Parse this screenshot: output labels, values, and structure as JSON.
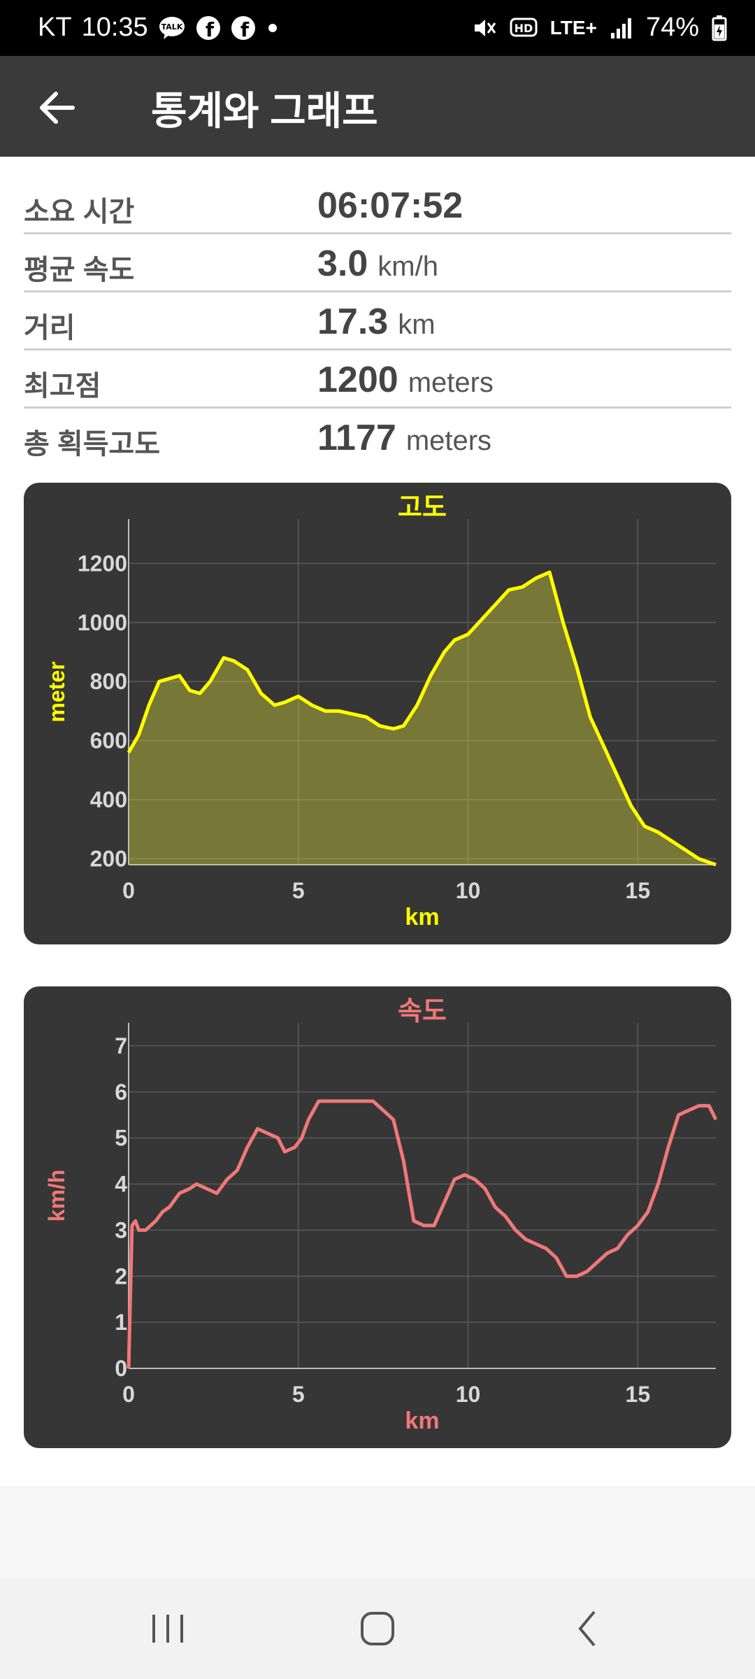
{
  "status_bar": {
    "carrier": "KT",
    "time": "10:35",
    "network": "LTE+",
    "battery": "74%"
  },
  "app_bar": {
    "title": "통계와 그래프"
  },
  "stats": [
    {
      "label": "소요 시간",
      "value": "06:07:52",
      "unit": ""
    },
    {
      "label": "평균 속도",
      "value": "3.0",
      "unit": "km/h"
    },
    {
      "label": "거리",
      "value": "17.3",
      "unit": "km"
    },
    {
      "label": "최고점",
      "value": "1200",
      "unit": "meters"
    },
    {
      "label": "총 획득고도",
      "value": "1177",
      "unit": "meters"
    }
  ],
  "colors": {
    "elevation": "#ffff00",
    "speed": "#f07878",
    "card_bg": "#363636",
    "app_bar": "#3a3a3a"
  },
  "chart_data": [
    {
      "type": "area",
      "title": "고도",
      "xlabel": "km",
      "ylabel": "meter",
      "xlim": [
        0,
        17.3
      ],
      "ylim": [
        180,
        1350
      ],
      "xticks": [
        0,
        5,
        10,
        15
      ],
      "yticks": [
        200,
        400,
        600,
        800,
        1000,
        1200
      ],
      "grid": true,
      "series": [
        {
          "x": [
            0,
            0.3,
            0.6,
            0.9,
            1.2,
            1.5,
            1.8,
            2.1,
            2.4,
            2.8,
            3.1,
            3.5,
            3.9,
            4.3,
            4.6,
            5.0,
            5.4,
            5.8,
            6.2,
            6.6,
            7.0,
            7.4,
            7.8,
            8.1,
            8.5,
            8.9,
            9.3,
            9.6,
            10.0,
            10.4,
            10.8,
            11.2,
            11.6,
            12.0,
            12.4,
            12.8,
            13.2,
            13.6,
            14.0,
            14.4,
            14.8,
            15.2,
            15.6,
            16.0,
            16.4,
            16.8,
            17.3
          ],
          "y": [
            560,
            620,
            720,
            800,
            810,
            820,
            770,
            760,
            800,
            880,
            870,
            840,
            760,
            720,
            730,
            750,
            720,
            700,
            700,
            690,
            680,
            650,
            640,
            650,
            720,
            820,
            900,
            940,
            960,
            1010,
            1060,
            1110,
            1120,
            1150,
            1170,
            1000,
            850,
            680,
            580,
            480,
            380,
            310,
            290,
            260,
            230,
            200,
            180
          ]
        }
      ]
    },
    {
      "type": "line",
      "title": "속도",
      "xlabel": "km",
      "ylabel": "km/h",
      "xlim": [
        0,
        17.3
      ],
      "ylim": [
        0,
        7.5
      ],
      "xticks": [
        0,
        5,
        10,
        15
      ],
      "yticks": [
        0,
        1,
        2,
        3,
        4,
        5,
        6,
        7
      ],
      "grid": true,
      "series": [
        {
          "x": [
            0,
            0.1,
            0.2,
            0.3,
            0.5,
            0.8,
            1.0,
            1.2,
            1.5,
            1.8,
            2.0,
            2.3,
            2.6,
            2.9,
            3.2,
            3.5,
            3.8,
            4.1,
            4.4,
            4.6,
            4.9,
            5.1,
            5.3,
            5.6,
            5.9,
            6.2,
            6.5,
            6.8,
            7.2,
            7.5,
            7.8,
            8.1,
            8.4,
            8.7,
            9.0,
            9.3,
            9.6,
            9.9,
            10.2,
            10.5,
            10.8,
            11.1,
            11.4,
            11.7,
            12.0,
            12.3,
            12.6,
            12.9,
            13.2,
            13.5,
            13.8,
            14.1,
            14.4,
            14.7,
            15.0,
            15.3,
            15.6,
            15.9,
            16.2,
            16.5,
            16.8,
            17.1,
            17.3
          ],
          "y": [
            0,
            3.1,
            3.2,
            3.0,
            3.0,
            3.2,
            3.4,
            3.5,
            3.8,
            3.9,
            4.0,
            3.9,
            3.8,
            4.1,
            4.3,
            4.8,
            5.2,
            5.1,
            5.0,
            4.7,
            4.8,
            5.0,
            5.4,
            5.8,
            5.8,
            5.8,
            5.8,
            5.8,
            5.8,
            5.6,
            5.4,
            4.5,
            3.2,
            3.1,
            3.1,
            3.6,
            4.1,
            4.2,
            4.1,
            3.9,
            3.5,
            3.3,
            3.0,
            2.8,
            2.7,
            2.6,
            2.4,
            2.0,
            2.0,
            2.1,
            2.3,
            2.5,
            2.6,
            2.9,
            3.1,
            3.4,
            4.0,
            4.8,
            5.5,
            5.6,
            5.7,
            5.7,
            5.4
          ]
        }
      ]
    }
  ]
}
